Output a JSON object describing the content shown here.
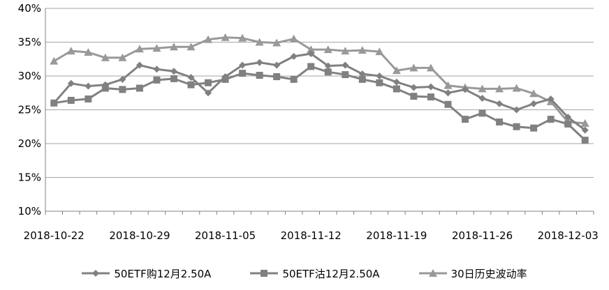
{
  "chart_data": {
    "type": "line",
    "x": [
      "2018-10-22",
      "2018-10-23",
      "2018-10-24",
      "2018-10-25",
      "2018-10-26",
      "2018-10-29",
      "2018-10-30",
      "2018-10-31",
      "2018-11-01",
      "2018-11-02",
      "2018-11-05",
      "2018-11-06",
      "2018-11-07",
      "2018-11-08",
      "2018-11-09",
      "2018-11-12",
      "2018-11-13",
      "2018-11-14",
      "2018-11-15",
      "2018-11-16",
      "2018-11-19",
      "2018-11-20",
      "2018-11-21",
      "2018-11-22",
      "2018-11-23",
      "2018-11-26",
      "2018-11-27",
      "2018-11-28",
      "2018-11-29",
      "2018-11-30",
      "2018-12-03",
      "2018-12-04"
    ],
    "x_tick_labels": [
      "2018-10-22",
      "2018-10-29",
      "2018-11-05",
      "2018-11-12",
      "2018-11-19",
      "2018-11-26",
      "2018-12-03"
    ],
    "y_tick_labels": [
      "10%",
      "15%",
      "20%",
      "25%",
      "30%",
      "35%",
      "40%"
    ],
    "ylim": [
      0.1,
      0.4
    ],
    "grid": "horizontal",
    "legend_position": "bottom",
    "series": [
      {
        "name": "50ETF购12月2.50A",
        "color": "#808080",
        "marker": "diamond",
        "values": [
          0.26,
          0.289,
          0.285,
          0.287,
          0.295,
          0.316,
          0.31,
          0.307,
          0.298,
          0.275,
          0.299,
          0.316,
          0.32,
          0.316,
          0.329,
          0.333,
          0.315,
          0.316,
          0.303,
          0.3,
          0.291,
          0.283,
          0.284,
          0.275,
          0.28,
          0.267,
          0.259,
          0.25,
          0.259,
          0.266,
          0.239,
          0.22
        ]
      },
      {
        "name": "50ETF沽12月2.50A",
        "color": "#808080",
        "marker": "square",
        "values": [
          0.26,
          0.264,
          0.266,
          0.282,
          0.28,
          0.282,
          0.294,
          0.296,
          0.287,
          0.29,
          0.295,
          0.304,
          0.301,
          0.299,
          0.295,
          0.314,
          0.306,
          0.302,
          0.295,
          0.29,
          0.281,
          0.27,
          0.269,
          0.258,
          0.236,
          0.245,
          0.232,
          0.225,
          0.223,
          0.236,
          0.229,
          0.205
        ]
      },
      {
        "name": "30日历史波动率",
        "color": "#999999",
        "marker": "triangle",
        "values": [
          0.322,
          0.337,
          0.335,
          0.327,
          0.327,
          0.34,
          0.341,
          0.343,
          0.343,
          0.354,
          0.357,
          0.356,
          0.35,
          0.349,
          0.355,
          0.339,
          0.339,
          0.337,
          0.338,
          0.336,
          0.308,
          0.312,
          0.312,
          0.286,
          0.283,
          0.281,
          0.281,
          0.282,
          0.274,
          0.262,
          0.232,
          0.23
        ]
      }
    ]
  }
}
